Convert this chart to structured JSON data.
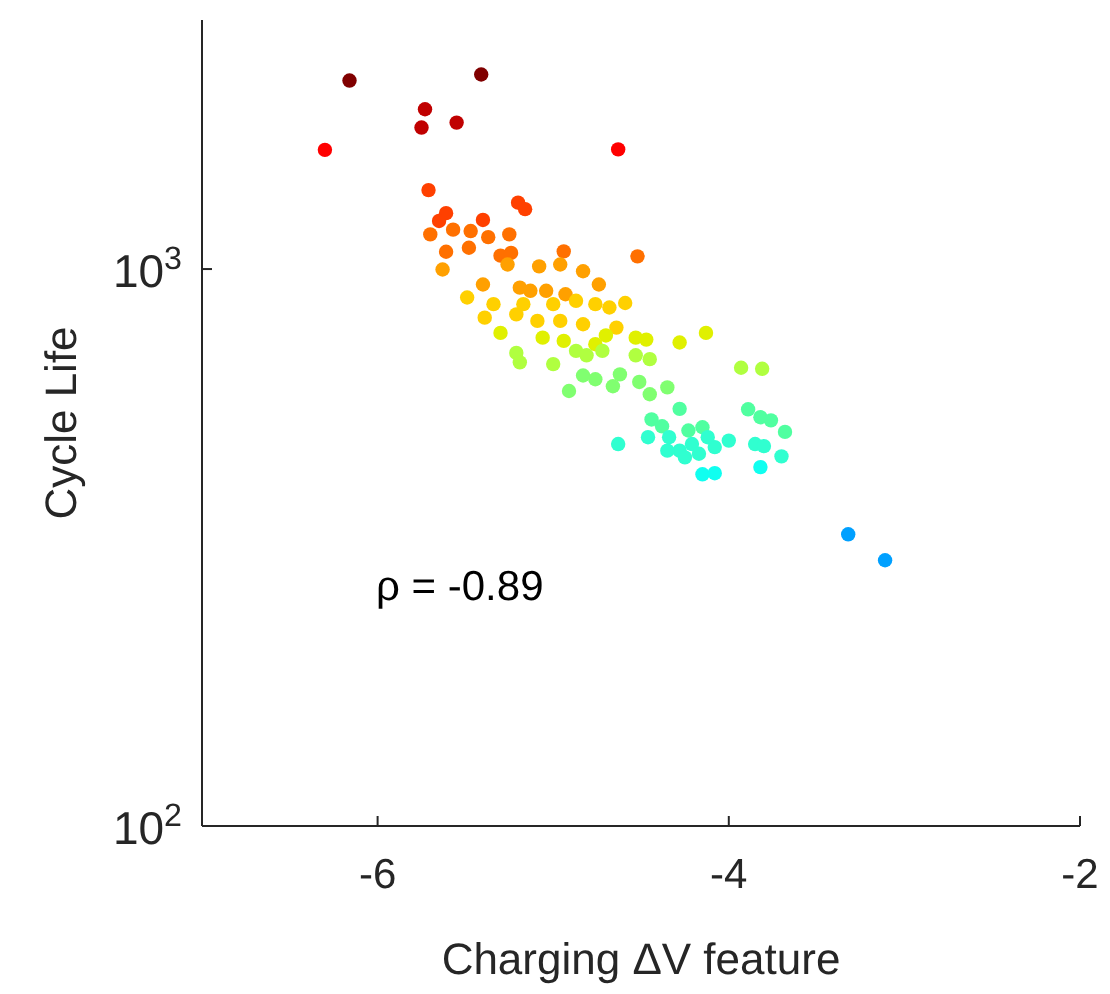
{
  "chart_data": {
    "type": "scatter",
    "xlabel": "Charging ΔV feature",
    "ylabel": "Cycle Life",
    "log": "y",
    "grid": false,
    "marker": "circle",
    "xlim": [
      -7,
      -2
    ],
    "xticks": [
      -6,
      -4,
      -2
    ],
    "ylim": [
      100,
      2800
    ],
    "yticks": [
      {
        "value": 100,
        "label": "10$^{2}$"
      },
      {
        "value": 1000,
        "label": "10$^{3}$"
      }
    ],
    "annotations": [
      "ρ = -0.89"
    ],
    "series": [
      {
        "color": "#800000",
        "x": [
          -6.16,
          -5.41
        ],
        "values": [
          2180,
          2235
        ]
      },
      {
        "color": "#c00000",
        "x": [
          -5.73,
          -5.75,
          -5.55
        ],
        "values": [
          1936,
          1795,
          1832
        ]
      },
      {
        "color": "#ff0000",
        "x": [
          -6.3,
          -4.63
        ],
        "values": [
          1637,
          1640
        ]
      },
      {
        "color": "#ff4000",
        "x": [
          -5.71,
          -5.2,
          -5.16,
          -5.61,
          -5.65,
          -5.4
        ],
        "values": [
          1386,
          1316,
          1281,
          1260,
          1220,
          1225
        ]
      },
      {
        "color": "#ff7000",
        "x": [
          -5.57,
          -5.47,
          -5.7,
          -5.37,
          -5.25,
          -5.48,
          -5.61,
          -4.52,
          -5.3,
          -5.24,
          -4.94
        ],
        "values": [
          1177,
          1170,
          1154,
          1141,
          1154,
          1092,
          1074,
          1054,
          1057,
          1069,
          1076
        ]
      },
      {
        "color": "#ffa000",
        "x": [
          -5.63,
          -5.26,
          -5.08,
          -4.96,
          -4.83,
          -4.74,
          -5.4,
          -5.19,
          -5.13,
          -5.04,
          -4.93
        ],
        "values": [
          998,
          1019,
          1011,
          1019,
          991,
          938,
          938,
          926,
          914,
          914,
          901
        ]
      },
      {
        "color": "#ffd000",
        "x": [
          -4.87,
          -5.49,
          -5.34,
          -5.17,
          -5.0,
          -4.76,
          -4.68,
          -4.59,
          -5.39,
          -5.21,
          -5.09,
          -4.96,
          -4.83,
          -4.64
        ],
        "values": [
          877,
          889,
          865,
          865,
          865,
          865,
          853,
          869,
          818,
          829,
          807,
          807,
          796,
          785
        ]
      },
      {
        "color": "#e0f000",
        "x": [
          -5.3,
          -5.06,
          -4.94,
          -4.76,
          -4.7,
          -4.53,
          -4.47,
          -4.28,
          -4.13
        ],
        "values": [
          768,
          753,
          743,
          733,
          760,
          753,
          747,
          738,
          768
        ]
      },
      {
        "color": "#b0ff40",
        "x": [
          -5.21,
          -5.19,
          -4.87,
          -4.81,
          -5.0,
          -4.72,
          -4.53,
          -4.45,
          -3.93,
          -3.81
        ],
        "values": [
          707,
          680,
          713,
          700,
          675,
          713,
          700,
          689,
          665,
          662
        ]
      },
      {
        "color": "#80ff70",
        "x": [
          -4.83,
          -4.76,
          -4.91,
          -4.62,
          -4.66,
          -4.51,
          -4.45,
          -4.35
        ],
        "values": [
          644,
          634,
          604,
          647,
          616,
          627,
          596,
          613
        ]
      },
      {
        "color": "#50ffa0",
        "x": [
          -4.28,
          -3.89,
          -3.82,
          -3.76,
          -3.68,
          -4.44,
          -4.38,
          -4.23,
          -4.15
        ],
        "values": [
          561,
          560,
          542,
          535,
          510,
          537,
          522,
          513,
          520
        ]
      },
      {
        "color": "#30ffd0",
        "x": [
          -4.46,
          -4.63,
          -4.34,
          -4.21,
          -4.28,
          -4.17,
          -4.08,
          -4.0,
          -4.12,
          -3.85,
          -3.8,
          -3.7,
          -4.25,
          -4.35
        ],
        "values": [
          499,
          485,
          499,
          485,
          472,
          466,
          479,
          492,
          499,
          485,
          481,
          461,
          459,
          472
        ]
      },
      {
        "color": "#10fff0",
        "x": [
          -3.82,
          -4.15,
          -4.08
        ],
        "values": [
          441,
          428,
          430
        ]
      },
      {
        "color": "#00a0ff",
        "x": [
          -3.32,
          -3.11
        ],
        "values": [
          334,
          300
        ]
      }
    ]
  }
}
